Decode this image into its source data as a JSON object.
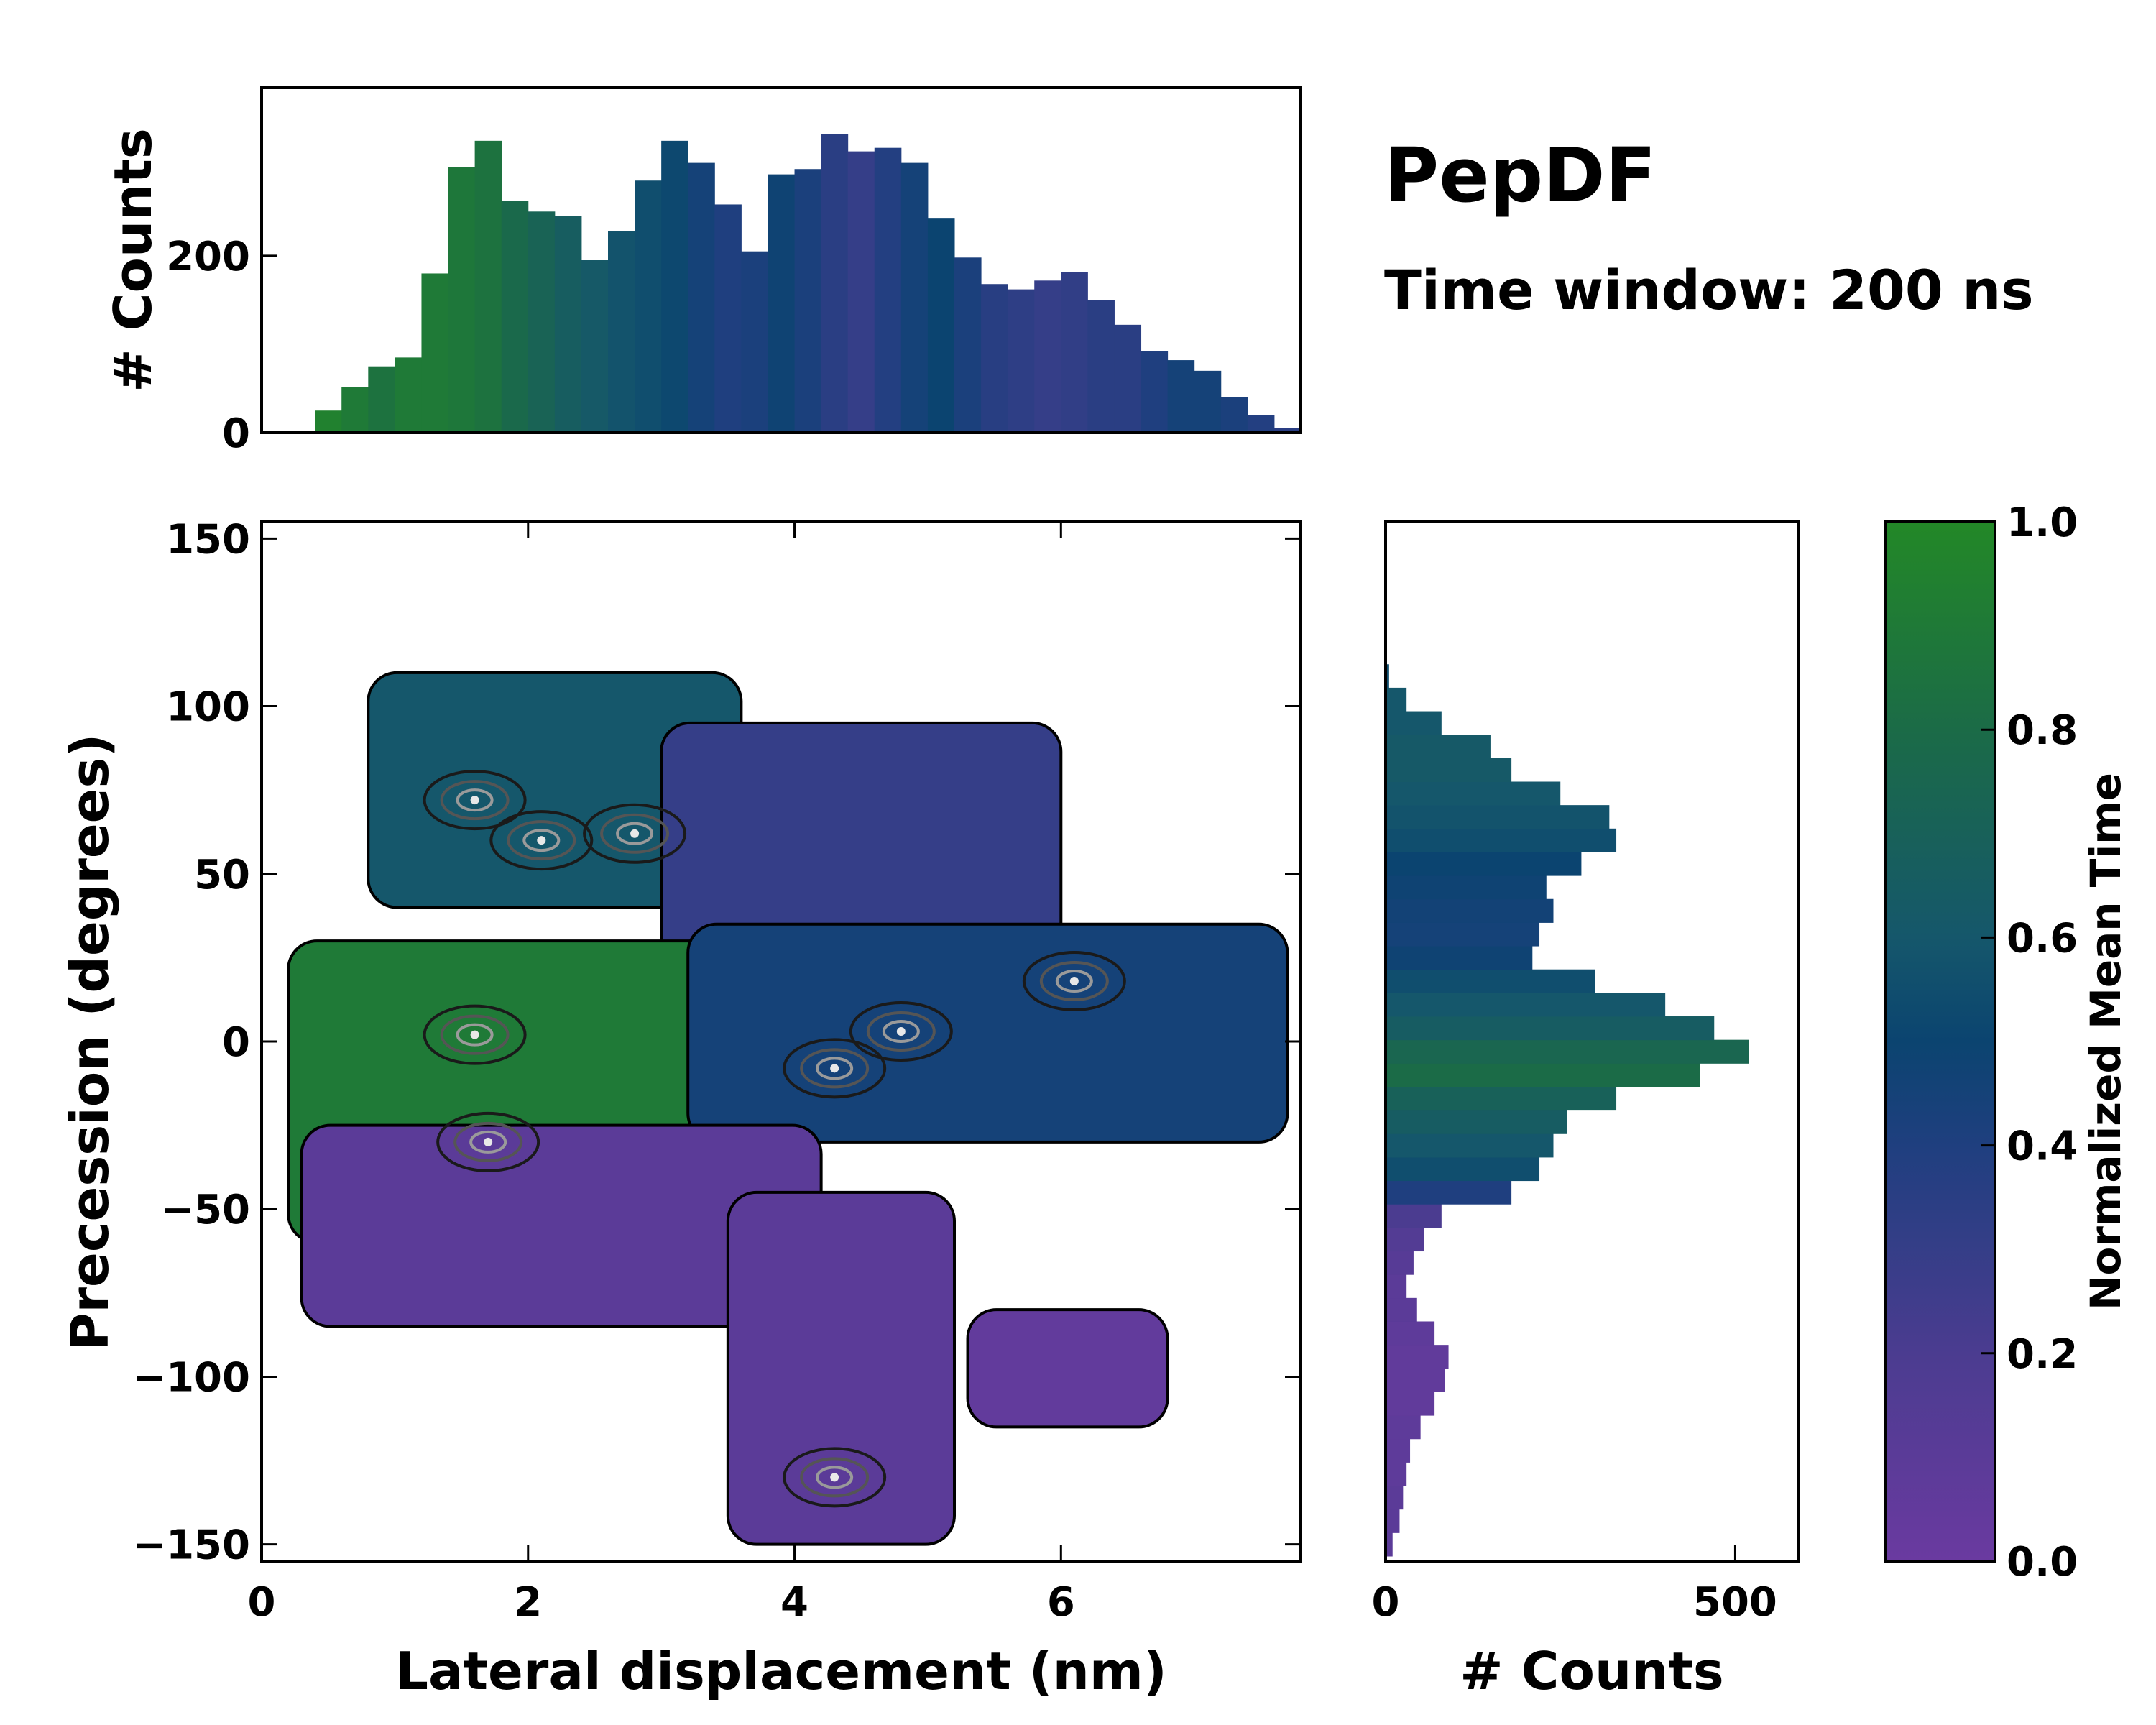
{
  "chart_data": [
    {
      "type": "heatmap",
      "name": "main-2d-distribution",
      "title": "PepDF",
      "subtitle": "Time window: 200 ns",
      "xlabel": "Lateral displacement (nm)",
      "ylabel": "Precession (degrees)",
      "xlim": [
        0,
        7.8
      ],
      "ylim": [
        -155,
        155
      ],
      "xticks": [
        0,
        2,
        4,
        6
      ],
      "xtick_labels": [
        "0",
        "2",
        "4",
        "6"
      ],
      "yticks": [
        -150,
        -100,
        -50,
        0,
        50,
        100,
        150
      ],
      "ytick_labels": [
        "−150",
        "−100",
        "−50",
        "0",
        "50",
        "100",
        "150"
      ],
      "color_meaning": "Normalized mean time (green = 1.0, purple = 0.0)",
      "regions": [
        {
          "name": "upper-left-lobe",
          "x_range": [
            0.8,
            3.6
          ],
          "y_range": [
            40,
            110
          ],
          "time": 0.6
        },
        {
          "name": "upper-middle-lobe",
          "x_range": [
            3.0,
            6.0
          ],
          "y_range": [
            20,
            95
          ],
          "time": 0.3
        },
        {
          "name": "left-central-lobe",
          "x_range": [
            0.2,
            4.0
          ],
          "y_range": [
            -60,
            30
          ],
          "time": 0.9
        },
        {
          "name": "central-band",
          "x_range": [
            3.2,
            7.7
          ],
          "y_range": [
            -30,
            35
          ],
          "time": 0.45
        },
        {
          "name": "lower-left-lobe",
          "x_range": [
            0.3,
            4.2
          ],
          "y_range": [
            -85,
            -25
          ],
          "time": 0.1
        },
        {
          "name": "lower-middle-lobe",
          "x_range": [
            3.5,
            5.2
          ],
          "y_range": [
            -150,
            -45
          ],
          "time": 0.1
        },
        {
          "name": "lower-right-lobe",
          "x_range": [
            5.3,
            6.8
          ],
          "y_range": [
            -115,
            -80
          ],
          "time": 0.05
        }
      ],
      "density_peaks": [
        {
          "x": 1.6,
          "y": 72
        },
        {
          "x": 2.1,
          "y": 60
        },
        {
          "x": 2.8,
          "y": 62
        },
        {
          "x": 4.8,
          "y": 3
        },
        {
          "x": 4.3,
          "y": -8
        },
        {
          "x": 6.1,
          "y": 18
        },
        {
          "x": 1.6,
          "y": 2
        },
        {
          "x": 1.7,
          "y": -30
        },
        {
          "x": 4.3,
          "y": -130
        }
      ]
    },
    {
      "type": "bar",
      "name": "top-marginal-histogram",
      "ylabel": "# Counts",
      "yticks": [
        0,
        200
      ],
      "ytick_labels": [
        "0",
        "200"
      ],
      "ylim": [
        0,
        390
      ],
      "x_range": [
        0,
        7.8
      ],
      "bin_centers_nm": [
        0.1,
        0.3,
        0.5,
        0.7,
        0.9,
        1.1,
        1.3,
        1.5,
        1.7,
        1.9,
        2.1,
        2.3,
        2.5,
        2.7,
        2.9,
        3.1,
        3.3,
        3.5,
        3.7,
        3.9,
        4.1,
        4.3,
        4.5,
        4.7,
        4.9,
        5.1,
        5.3,
        5.5,
        5.7,
        5.9,
        6.1,
        6.3,
        6.5,
        6.7,
        6.9,
        7.1,
        7.3,
        7.5,
        7.7
      ],
      "values": [
        0,
        2,
        25,
        52,
        75,
        85,
        180,
        300,
        330,
        262,
        250,
        245,
        195,
        228,
        285,
        330,
        305,
        258,
        205,
        292,
        298,
        338,
        318,
        322,
        305,
        242,
        198,
        168,
        162,
        172,
        182,
        150,
        122,
        92,
        82,
        70,
        40,
        20,
        5
      ],
      "bar_time": [
        1.0,
        1.0,
        0.95,
        0.9,
        0.85,
        0.9,
        0.9,
        0.88,
        0.85,
        0.78,
        0.72,
        0.66,
        0.62,
        0.58,
        0.55,
        0.52,
        0.45,
        0.4,
        0.42,
        0.48,
        0.42,
        0.35,
        0.3,
        0.38,
        0.45,
        0.5,
        0.42,
        0.36,
        0.33,
        0.3,
        0.32,
        0.35,
        0.35,
        0.4,
        0.45,
        0.45,
        0.42,
        0.38,
        0.35
      ]
    },
    {
      "type": "bar",
      "orientation": "horizontal",
      "name": "right-marginal-histogram",
      "xlabel": "# Counts",
      "xticks": [
        0,
        500
      ],
      "xtick_labels": [
        "0",
        "500"
      ],
      "xlim": [
        0,
        590
      ],
      "bin_centers_deg": [
        -150,
        -143,
        -136,
        -129,
        -122,
        -115,
        -108,
        -101,
        -94,
        -87,
        -80,
        -73,
        -66,
        -59,
        -52,
        -45,
        -38,
        -31,
        -24,
        -17,
        -10,
        -3,
        4,
        11,
        18,
        25,
        32,
        39,
        46,
        53,
        60,
        67,
        74,
        81,
        88,
        95,
        102,
        109
      ],
      "values": [
        10,
        20,
        25,
        30,
        35,
        50,
        70,
        85,
        90,
        70,
        45,
        30,
        40,
        55,
        80,
        180,
        220,
        240,
        260,
        330,
        450,
        520,
        470,
        400,
        300,
        210,
        220,
        240,
        230,
        280,
        330,
        320,
        250,
        180,
        150,
        80,
        30,
        5
      ],
      "bar_time": [
        0.1,
        0.1,
        0.1,
        0.08,
        0.08,
        0.08,
        0.06,
        0.06,
        0.06,
        0.08,
        0.1,
        0.1,
        0.12,
        0.15,
        0.2,
        0.4,
        0.55,
        0.6,
        0.65,
        0.7,
        0.8,
        0.75,
        0.65,
        0.6,
        0.55,
        0.48,
        0.45,
        0.46,
        0.48,
        0.5,
        0.55,
        0.58,
        0.6,
        0.62,
        0.62,
        0.6,
        0.6,
        0.55
      ]
    },
    {
      "type": "colorbar",
      "name": "time-colorbar",
      "label": "Normalized Mean Time",
      "range": [
        0.0,
        1.0
      ],
      "ticks": [
        0.0,
        0.2,
        0.4,
        0.6,
        0.8,
        1.0
      ],
      "tick_labels": [
        "0.0",
        "0.2",
        "0.4",
        "0.6",
        "0.8",
        "1.0"
      ],
      "colormap_stops": [
        {
          "t": 0.0,
          "color": "#6a3aa0"
        },
        {
          "t": 0.2,
          "color": "#4b3c90"
        },
        {
          "t": 0.4,
          "color": "#1f3f7f"
        },
        {
          "t": 0.5,
          "color": "#0b4470"
        },
        {
          "t": 0.6,
          "color": "#15576b"
        },
        {
          "t": 0.8,
          "color": "#1b6b47"
        },
        {
          "t": 1.0,
          "color": "#238827"
        }
      ]
    }
  ]
}
